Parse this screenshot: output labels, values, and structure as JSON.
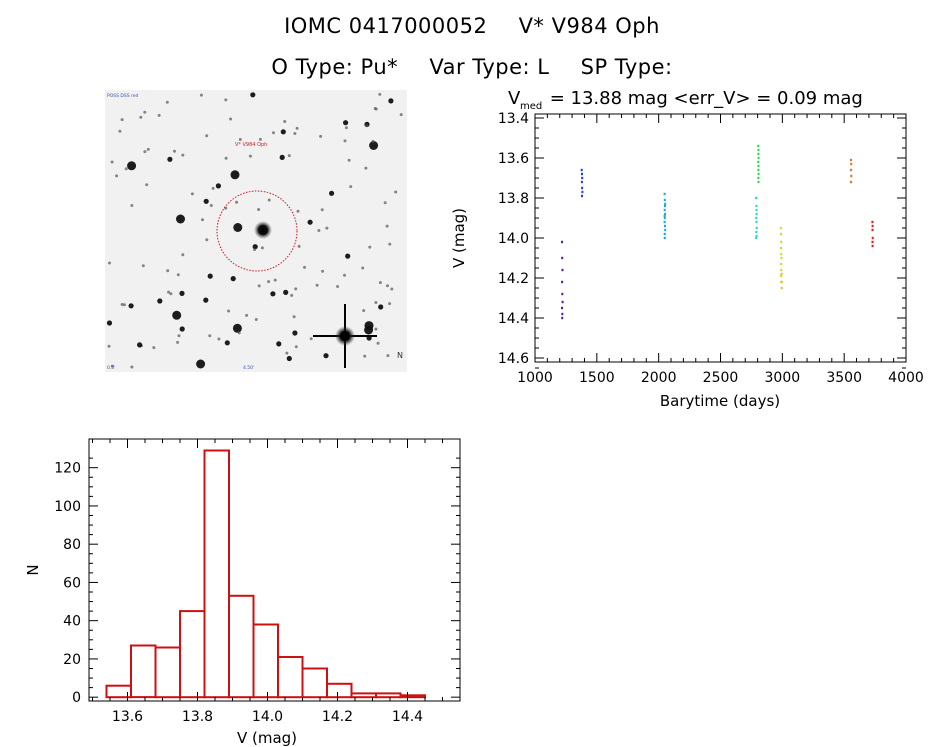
{
  "header": {
    "line1": [
      "IOMC 0417000052",
      "V* V984 Oph"
    ],
    "line2": [
      "O Type: Pu*",
      "Var Type: L",
      "SP Type:"
    ]
  },
  "sky_image": {
    "target_label": "V* V984 Oph",
    "corner_tl": "POSS DSS red",
    "corner_bl": "0.5'",
    "bottom_center": "4.50'",
    "corner_br": "N"
  },
  "chart_data": [
    {
      "type": "scatter",
      "name": "lightcurve",
      "title_parts": {
        "v": "V",
        "sub": "med",
        "text": " = 13.88 mag <err_V> = 0.09 mag"
      },
      "xlabel": "Barytime (days)",
      "ylabel": "V (mag)",
      "xlim": [
        1000,
        4000
      ],
      "ylim": [
        14.62,
        13.38
      ],
      "xticks": [
        1000,
        1500,
        2000,
        2500,
        3000,
        3500,
        4000
      ],
      "xtick_labels": [
        "1000",
        "1500",
        "2000",
        "2500",
        "3000",
        "3500",
        "4000"
      ],
      "yticks": [
        13.4,
        13.6,
        13.8,
        14.0,
        14.2,
        14.4,
        14.6
      ],
      "ytick_labels": [
        "13.4",
        "13.6",
        "13.8",
        "14.0",
        "14.2",
        "14.4",
        "14.6"
      ],
      "series": [
        {
          "color": "#5a1a9a",
          "x": [
            1218,
            1220,
            1222,
            1219,
            1221,
            1223,
            1218,
            1221,
            1220
          ],
          "y": [
            14.02,
            14.1,
            14.16,
            14.22,
            14.28,
            14.32,
            14.35,
            14.38,
            14.4
          ]
        },
        {
          "color": "#2a3fbf",
          "x": [
            1378,
            1380,
            1382,
            1379,
            1381,
            1383,
            1380
          ],
          "y": [
            13.66,
            13.68,
            13.7,
            13.72,
            13.75,
            13.77,
            13.79
          ]
        },
        {
          "color": "#1aa8d6",
          "x": [
            2048,
            2050,
            2051,
            2049,
            2052,
            2050,
            2048,
            2051,
            2053,
            2049,
            2050,
            2052,
            2048
          ],
          "y": [
            13.78,
            13.81,
            13.84,
            13.86,
            13.88,
            13.9,
            13.92,
            13.94,
            13.96,
            13.98,
            14.0,
            13.83,
            13.89
          ]
        },
        {
          "color": "#29d6c2",
          "x": [
            2788,
            2790,
            2792,
            2789,
            2791,
            2793,
            2790,
            2792,
            2788,
            2791
          ],
          "y": [
            13.8,
            13.84,
            13.88,
            13.9,
            13.92,
            13.95,
            13.97,
            13.99,
            14.0,
            13.86
          ]
        },
        {
          "color": "#31d84a",
          "x": [
            2805,
            2807,
            2806,
            2808,
            2805,
            2807,
            2806,
            2808,
            2806,
            2807
          ],
          "y": [
            13.54,
            13.56,
            13.58,
            13.6,
            13.62,
            13.64,
            13.66,
            13.68,
            13.7,
            13.72
          ]
        },
        {
          "color": "#c8e020",
          "x": [
            2988,
            2990,
            2992,
            2989,
            2991,
            2993,
            2990,
            2992,
            2989,
            2991
          ],
          "y": [
            13.95,
            13.98,
            14.02,
            14.05,
            14.08,
            14.1,
            14.13,
            14.16,
            14.19,
            14.22
          ]
        },
        {
          "color": "#e8c020",
          "x": [
            2994,
            2996,
            2995
          ],
          "y": [
            14.18,
            14.22,
            14.25
          ]
        },
        {
          "color": "#d8741e",
          "x": [
            3555,
            3557,
            3556,
            3558,
            3556
          ],
          "y": [
            13.61,
            13.63,
            13.66,
            13.69,
            13.72
          ]
        },
        {
          "color": "#dd1f1f",
          "x": [
            3728,
            3730,
            3729,
            3731,
            3729,
            3730
          ],
          "y": [
            13.92,
            13.94,
            13.96,
            14.0,
            14.02,
            14.04
          ]
        }
      ]
    },
    {
      "type": "bar",
      "name": "histogram",
      "xlabel": "V (mag)",
      "ylabel": "N",
      "xlim": [
        13.49,
        14.55
      ],
      "ylim": [
        -2,
        135
      ],
      "bin_width": 0.07,
      "bin_edges": [
        13.54,
        13.61,
        13.68,
        13.75,
        13.82,
        13.89,
        13.96,
        14.03,
        14.1,
        14.17,
        14.24,
        14.31,
        14.38,
        14.45
      ],
      "values": [
        6,
        27,
        26,
        45,
        129,
        53,
        38,
        21,
        15,
        7,
        2,
        2,
        1
      ],
      "xticks": [
        13.6,
        13.8,
        14.0,
        14.2,
        14.4
      ],
      "xtick_labels": [
        "13.6",
        "13.8",
        "14.0",
        "14.2",
        "14.4"
      ],
      "yticks": [
        0,
        20,
        40,
        60,
        80,
        100,
        120
      ],
      "ytick_labels": [
        "0",
        "20",
        "40",
        "60",
        "80",
        "100",
        "120"
      ],
      "bar_color": "#cc1111"
    }
  ]
}
